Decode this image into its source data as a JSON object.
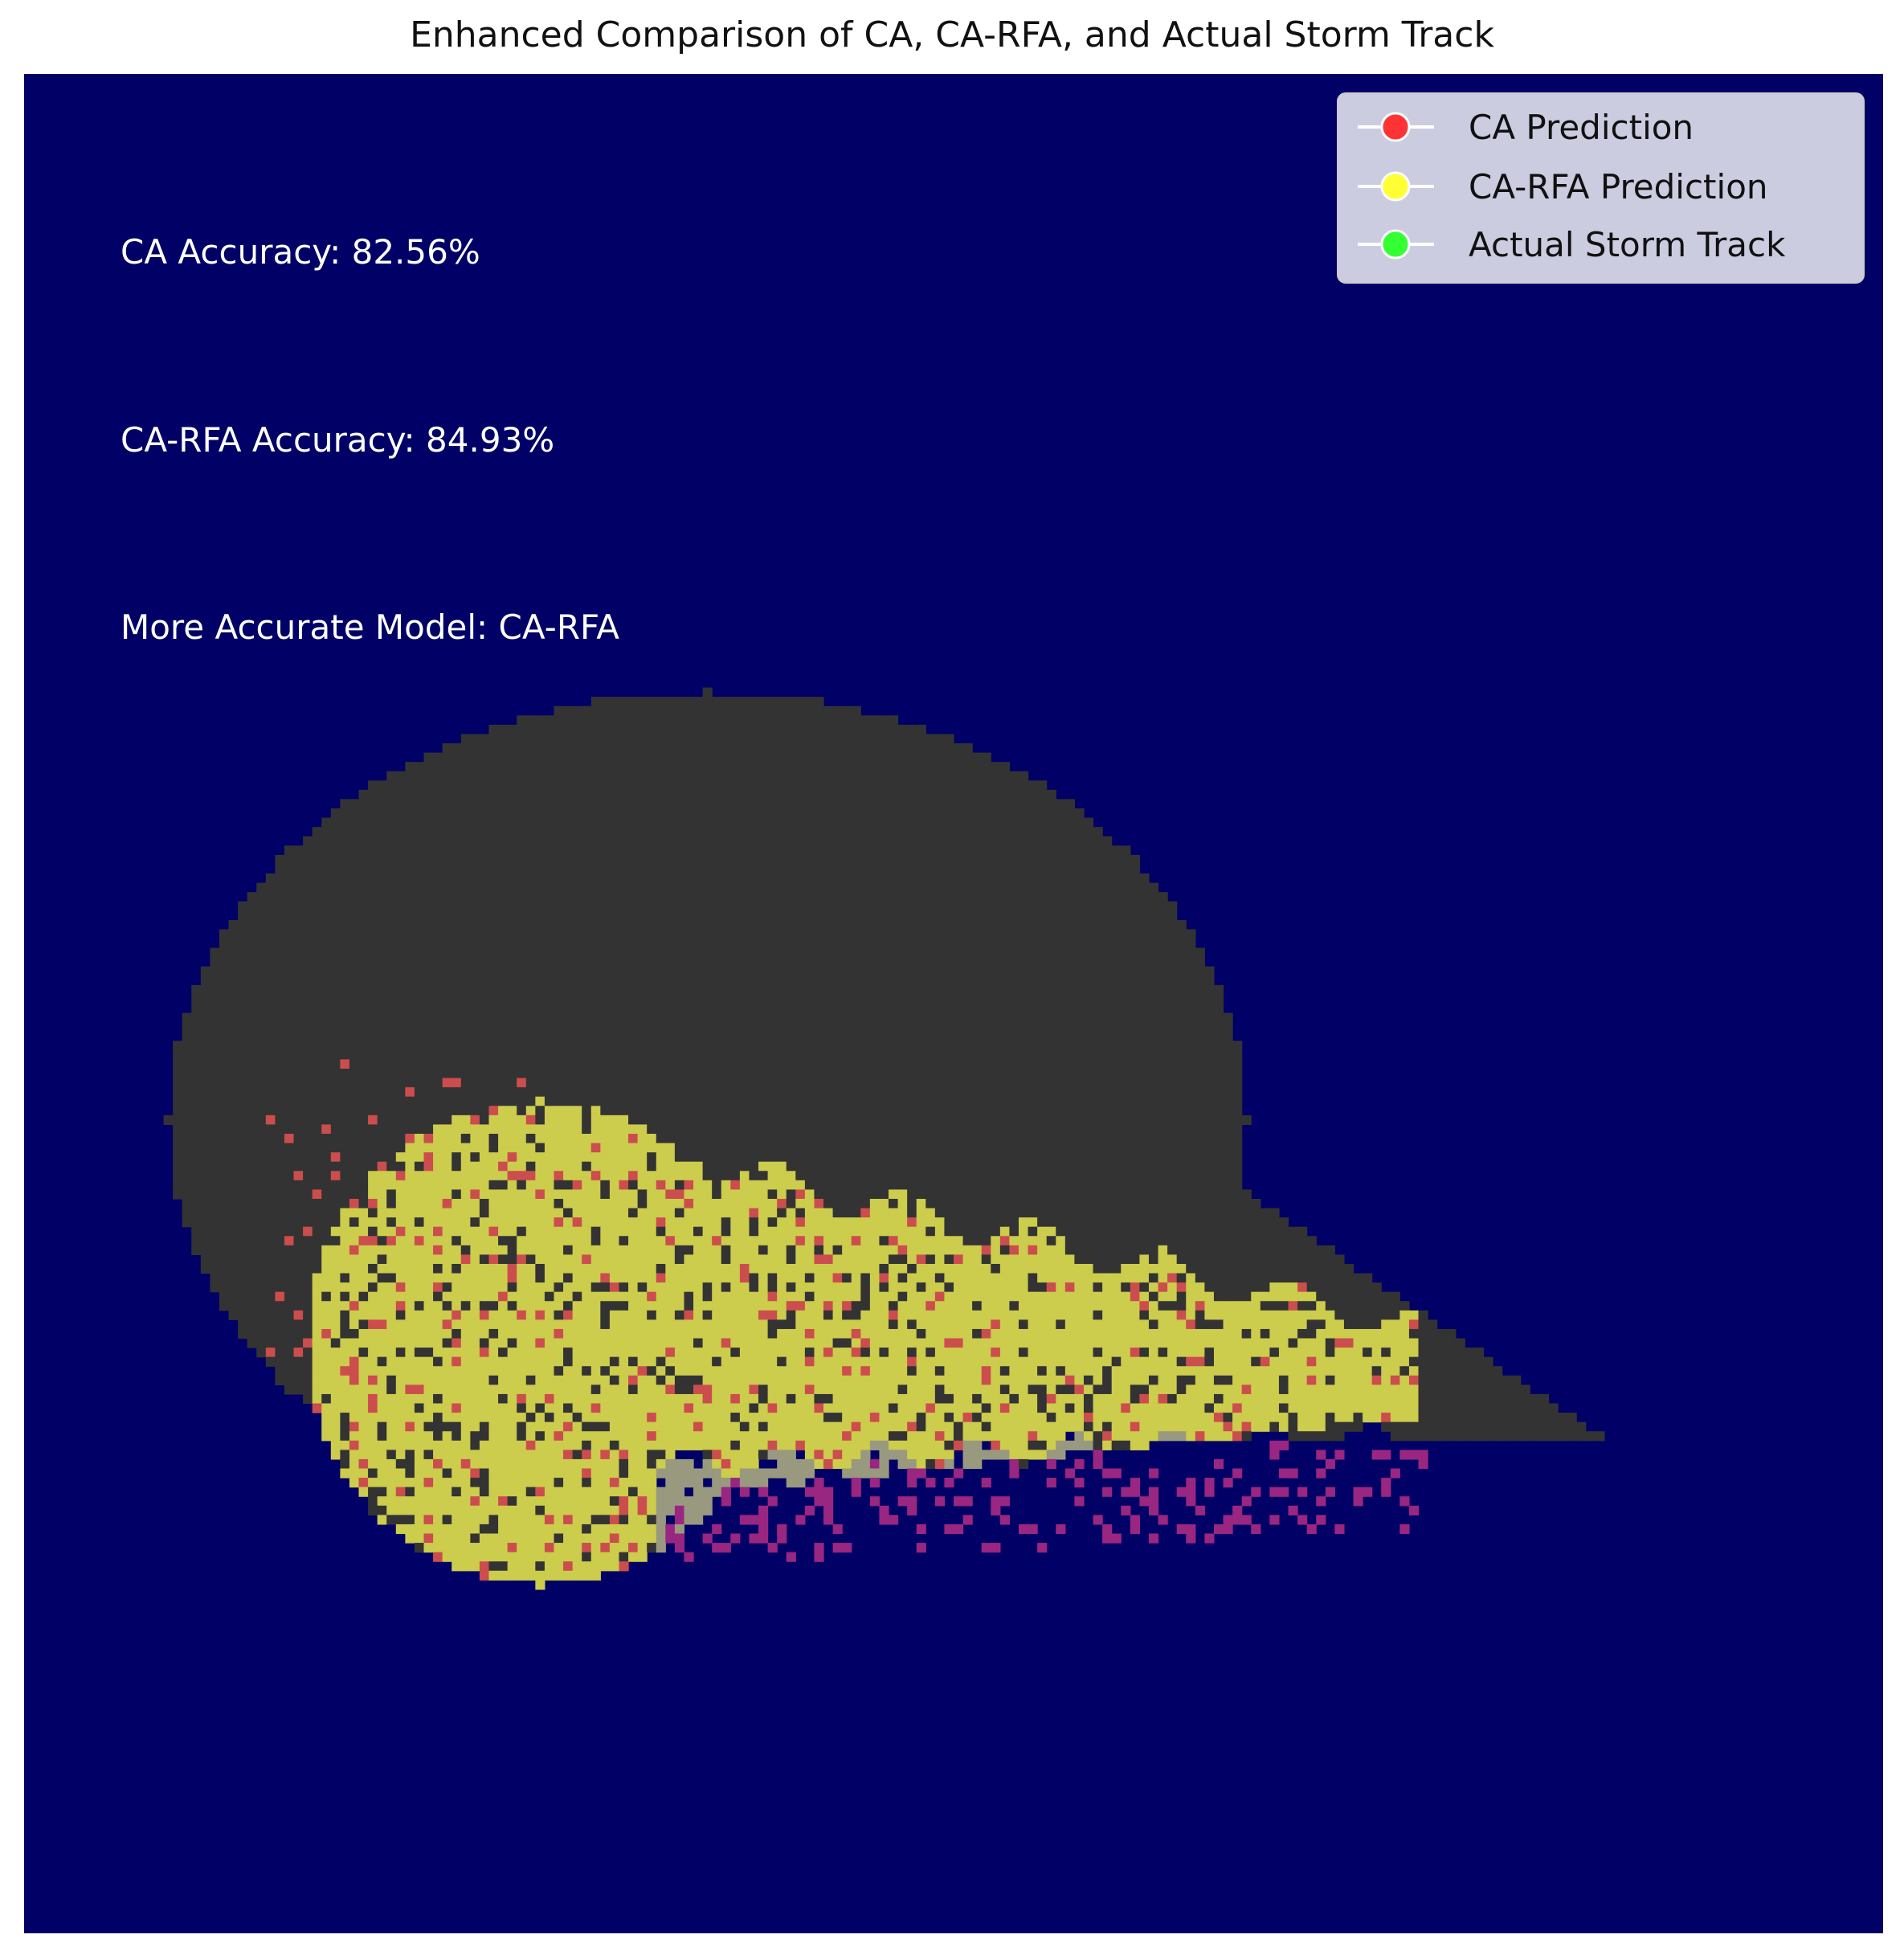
{
  "chart_data": {
    "type": "heatmap",
    "title": "Enhanced Comparison of CA, CA-RFA, and Actual Storm Track",
    "xlabel": "",
    "ylabel": "",
    "axes_visible": false,
    "grid": false,
    "legend_placement": "top-right",
    "background_color": "#000066",
    "legend": [
      {
        "label": "CA Prediction",
        "color": "#ff3333"
      },
      {
        "label": "CA-RFA Prediction",
        "color": "#ffff33"
      },
      {
        "label": "Actual Storm Track",
        "color": "#33ff33"
      }
    ],
    "annotations": [
      "CA Accuracy: 82.56%",
      "CA-RFA Accuracy: 84.93%",
      "More Accurate Model: CA-RFA"
    ],
    "metrics": {
      "ca_accuracy_percent": 82.56,
      "ca_rfa_accuracy_percent": 84.93,
      "more_accurate_model": "CA-RFA"
    },
    "region_colors": {
      "background": "#000066",
      "ca_region": "#333333",
      "ca_rfa_overlap": "#cccc4d",
      "ca_only_cells": "#cc4d4d",
      "track_overlap": "#999980",
      "track_only_cells": "#992680"
    }
  }
}
